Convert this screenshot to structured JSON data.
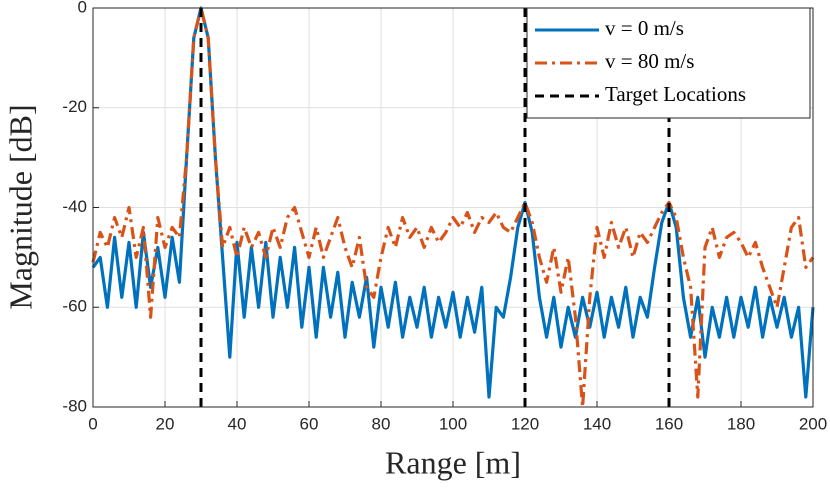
{
  "chart_data": {
    "type": "line",
    "xlabel": "Range [m]",
    "ylabel": "Magnitude [dB]",
    "xlim": [
      0,
      200
    ],
    "ylim": [
      -80,
      0
    ],
    "xticks": [
      0,
      20,
      40,
      60,
      80,
      100,
      120,
      140,
      160,
      180,
      200
    ],
    "yticks": [
      -80,
      -60,
      -40,
      -20,
      0
    ],
    "grid": true,
    "legend": "northeast",
    "x": [
      0,
      2,
      4,
      6,
      8,
      10,
      12,
      14,
      16,
      18,
      20,
      22,
      24,
      26,
      28,
      30,
      32,
      34,
      36,
      38,
      40,
      42,
      44,
      46,
      48,
      50,
      52,
      54,
      56,
      58,
      60,
      62,
      64,
      66,
      68,
      70,
      72,
      74,
      76,
      78,
      80,
      82,
      84,
      86,
      88,
      90,
      92,
      94,
      96,
      98,
      100,
      102,
      104,
      106,
      108,
      110,
      112,
      114,
      116,
      118,
      120,
      122,
      124,
      126,
      128,
      130,
      132,
      134,
      136,
      138,
      140,
      142,
      144,
      146,
      148,
      150,
      152,
      154,
      156,
      158,
      160,
      162,
      164,
      166,
      168,
      170,
      172,
      174,
      176,
      178,
      180,
      182,
      184,
      186,
      188,
      190,
      192,
      194,
      196,
      198,
      200
    ],
    "series": [
      {
        "name": "v = 0 m/s",
        "color": "#0072BD",
        "style": "solid",
        "values": [
          -52,
          -50,
          -60,
          -46,
          -58,
          -47,
          -60,
          -45,
          -56,
          -48,
          -58,
          -46,
          -55,
          -30,
          -6,
          0,
          -6,
          -30,
          -50,
          -70,
          -47,
          -62,
          -48,
          -60,
          -47,
          -62,
          -50,
          -60,
          -48,
          -64,
          -52,
          -66,
          -52,
          -62,
          -53,
          -66,
          -55,
          -62,
          -54,
          -68,
          -56,
          -64,
          -55,
          -66,
          -58,
          -64,
          -56,
          -66,
          -58,
          -64,
          -57,
          -66,
          -58,
          -65,
          -56,
          -78,
          -60,
          -62,
          -54,
          -44,
          -39,
          -45,
          -58,
          -66,
          -58,
          -68,
          -60,
          -66,
          -58,
          -64,
          -57,
          -66,
          -58,
          -64,
          -56,
          -66,
          -58,
          -62,
          -52,
          -43,
          -39,
          -44,
          -58,
          -66,
          -58,
          -70,
          -60,
          -66,
          -58,
          -66,
          -58,
          -64,
          -56,
          -66,
          -58,
          -64,
          -58,
          -66,
          -60,
          -78,
          -60
        ]
      },
      {
        "name": "v = 80 m/s",
        "color": "#D95319",
        "style": "dashdot",
        "values": [
          -51,
          -45,
          -48,
          -42,
          -46,
          -40,
          -50,
          -44,
          -62,
          -42,
          -48,
          -44,
          -46,
          -30,
          -6,
          0,
          -6,
          -30,
          -48,
          -44,
          -50,
          -44,
          -48,
          -45,
          -50,
          -44,
          -48,
          -42,
          -40,
          -45,
          -50,
          -44,
          -50,
          -46,
          -42,
          -48,
          -52,
          -46,
          -56,
          -58,
          -50,
          -44,
          -48,
          -42,
          -46,
          -44,
          -48,
          -44,
          -47,
          -45,
          -42,
          -44,
          -41,
          -45,
          -42,
          -43,
          -41,
          -44,
          -45,
          -42,
          -39,
          -43,
          -50,
          -55,
          -48,
          -57,
          -50,
          -62,
          -80,
          -58,
          -44,
          -50,
          -43,
          -48,
          -44,
          -50,
          -45,
          -47,
          -44,
          -41,
          -39,
          -42,
          -50,
          -56,
          -78,
          -48,
          -44,
          -50,
          -46,
          -45,
          -47,
          -50,
          -47,
          -52,
          -56,
          -60,
          -52,
          -44,
          -42,
          -52,
          -50
        ]
      }
    ],
    "target_locations": {
      "name": "Target Locations",
      "color": "#000000",
      "x": [
        30,
        120,
        160
      ]
    }
  }
}
